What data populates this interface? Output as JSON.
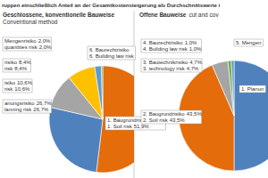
{
  "header": {
    "title": "ruppen einschließlich Anteil an der Gesamtkostensteigerung als Durchschnittswerte i"
  },
  "chart_data": [
    {
      "type": "pie",
      "title": "Geschlossene, konventionelle Bauweise",
      "subtitle": "Conventional method",
      "categories": [
        "1. Baugrundrisiko",
        "anungsrisiko",
        "isiko",
        "risiko",
        "Mengenrisiko",
        "6. Baurechtrisiko"
      ],
      "categories_en": [
        "1. Soil risk",
        "lanning risk",
        "risk",
        "risk",
        "quantities risk",
        "6. Building law risk"
      ],
      "values": [
        51.9,
        26.7,
        10.6,
        8.4,
        2.0,
        0.4
      ],
      "value_labels": [
        "51,9%",
        "26,7%",
        "10,6%",
        "8,4%",
        "2,0%",
        null
      ],
      "colors": [
        "#e46c0a",
        "#4f81bd",
        "#a5a5a5",
        "#ffc000",
        "#5b9bd5",
        "#70ad47"
      ]
    },
    {
      "type": "pie",
      "title": "Offene Bauweise",
      "subtitle": "cut and cov",
      "categories": [
        "1. Planun",
        "2. Baugrundrisiko",
        "3. Bautechnikrisiko",
        "4. Baurechtrisiko",
        "5. Mengen"
      ],
      "categories_en": [
        null,
        "2. Soil risk",
        "3. technology risk",
        "4. Building law risk",
        null
      ],
      "values": [
        50.0,
        43.5,
        4.7,
        1.0,
        0.8
      ],
      "value_labels": [
        null,
        "43,5%",
        "4,7%",
        "1,0%",
        null
      ],
      "colors": [
        "#4f81bd",
        "#e46c0a",
        "#a5a5a5",
        "#70ad47",
        "#5b9bd5"
      ]
    }
  ]
}
